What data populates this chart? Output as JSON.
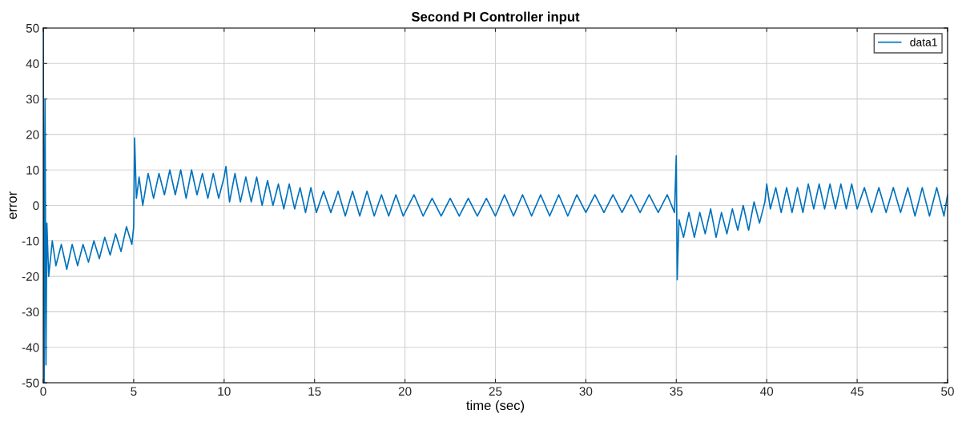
{
  "chart_data": {
    "type": "line",
    "title": "Second PI Controller input",
    "xlabel": "time (sec)",
    "ylabel": "error",
    "xlim": [
      0,
      50
    ],
    "xticks": [
      0,
      5,
      10,
      15,
      20,
      25,
      30,
      35,
      40,
      45,
      50
    ],
    "ylim": [
      -50,
      50
    ],
    "yticks": [
      -50,
      -40,
      -30,
      -20,
      -10,
      0,
      10,
      20,
      30,
      40,
      50
    ],
    "grid": true,
    "legend": "top right",
    "marker": "none",
    "line_style": "solid",
    "series": [
      {
        "name": "data1",
        "color": "#0072bd",
        "x": [
          0,
          0.05,
          0.1,
          0.15,
          0.2,
          0.3,
          0.5,
          0.7,
          1.0,
          1.3,
          1.6,
          1.9,
          2.2,
          2.5,
          2.8,
          3.1,
          3.4,
          3.7,
          4.0,
          4.3,
          4.6,
          4.9,
          5.0,
          5.05,
          5.15,
          5.3,
          5.5,
          5.8,
          6.1,
          6.4,
          6.7,
          7.0,
          7.3,
          7.6,
          7.9,
          8.2,
          8.5,
          8.8,
          9.1,
          9.4,
          9.7,
          10.0,
          10.1,
          10.3,
          10.6,
          10.9,
          11.2,
          11.5,
          11.8,
          12.1,
          12.4,
          12.7,
          13.0,
          13.3,
          13.6,
          13.9,
          14.2,
          14.5,
          14.8,
          15.1,
          15.5,
          15.9,
          16.3,
          16.7,
          17.1,
          17.5,
          17.9,
          18.3,
          18.7,
          19.1,
          19.5,
          19.9,
          20.5,
          21.0,
          21.5,
          22.0,
          22.5,
          23.0,
          23.5,
          24.0,
          24.5,
          25.0,
          25.5,
          26.0,
          26.5,
          27.0,
          27.5,
          28.0,
          28.5,
          29.0,
          29.5,
          30.0,
          30.5,
          31.0,
          31.5,
          32.0,
          32.5,
          33.0,
          33.5,
          34.0,
          34.5,
          34.9,
          35.0,
          35.05,
          35.15,
          35.4,
          35.7,
          36.0,
          36.3,
          36.6,
          36.9,
          37.2,
          37.5,
          37.8,
          38.1,
          38.4,
          38.7,
          39.0,
          39.3,
          39.6,
          39.9,
          40.0,
          40.2,
          40.5,
          40.8,
          41.1,
          41.4,
          41.7,
          42.0,
          42.3,
          42.6,
          42.9,
          43.2,
          43.5,
          43.8,
          44.1,
          44.4,
          44.7,
          45.0,
          45.4,
          45.8,
          46.2,
          46.6,
          47.0,
          47.4,
          47.8,
          48.2,
          48.6,
          49.0,
          49.4,
          49.8,
          50.0
        ],
        "values": [
          50,
          -50,
          30,
          -45,
          -5,
          -20,
          -10,
          -17,
          -11,
          -18,
          -11,
          -17,
          -11,
          -16,
          -10,
          -15,
          -9,
          -14,
          -8,
          -13,
          -6,
          -11,
          -6,
          19,
          2,
          8,
          0,
          9,
          2,
          9,
          3,
          10,
          3,
          10,
          2,
          10,
          3,
          9,
          2,
          9,
          2,
          8,
          11,
          1,
          9,
          1,
          8,
          1,
          8,
          0,
          7,
          0,
          6,
          -1,
          6,
          -1,
          5,
          -2,
          5,
          -2,
          4,
          -2,
          4,
          -3,
          4,
          -3,
          4,
          -3,
          3,
          -3,
          3,
          -3,
          3,
          -3,
          2,
          -3,
          2,
          -3,
          2,
          -3,
          2,
          -3,
          3,
          -3,
          3,
          -3,
          3,
          -3,
          3,
          -3,
          3,
          -2,
          3,
          -2,
          3,
          -2,
          3,
          -2,
          3,
          -2,
          3,
          -2,
          14,
          -21,
          -4,
          -9,
          -2,
          -9,
          -2,
          -8,
          -1,
          -9,
          -2,
          -8,
          -1,
          -7,
          0,
          -7,
          1,
          -5,
          1,
          6,
          -1,
          5,
          -2,
          5,
          -2,
          5,
          -2,
          6,
          -1,
          6,
          -1,
          6,
          -1,
          6,
          -1,
          6,
          -1,
          5,
          -2,
          5,
          -2,
          5,
          -2,
          5,
          -3,
          5,
          -3,
          5,
          -3,
          3
        ]
      }
    ]
  }
}
